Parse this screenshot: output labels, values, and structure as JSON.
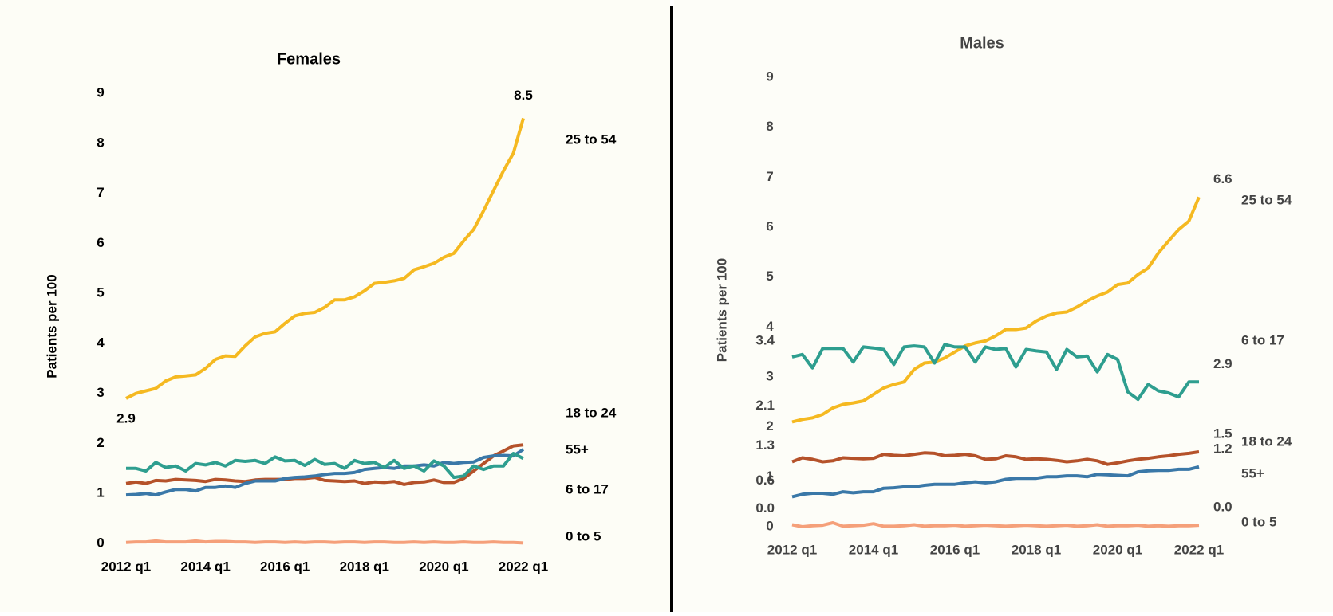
{
  "chart_data": [
    {
      "type": "line",
      "title": "Females",
      "y_label": "Patients per 100",
      "categories": [
        "2012 q1",
        null,
        null,
        null,
        null,
        null,
        null,
        null,
        "2014 q1",
        null,
        null,
        null,
        null,
        null,
        null,
        null,
        "2016 q1",
        null,
        null,
        null,
        null,
        null,
        null,
        null,
        "2018 q1",
        null,
        null,
        null,
        null,
        null,
        null,
        null,
        "2020 q1",
        null,
        null,
        null,
        null,
        null,
        null,
        null,
        "2022 q1"
      ],
      "ylim": [
        0,
        9
      ],
      "yticks": [
        0,
        1,
        2,
        3,
        4,
        5,
        6,
        7,
        8,
        9
      ],
      "series": [
        {
          "name": "25 to 54",
          "color": "#f5b921",
          "values": [
            2.9,
            3.0,
            3.05,
            3.1,
            3.25,
            3.33,
            3.35,
            3.37,
            3.5,
            3.68,
            3.75,
            3.74,
            3.95,
            4.13,
            4.2,
            4.23,
            4.4,
            4.55,
            4.6,
            4.62,
            4.72,
            4.87,
            4.87,
            4.93,
            5.05,
            5.2,
            5.22,
            5.25,
            5.3,
            5.47,
            5.53,
            5.6,
            5.72,
            5.8,
            6.05,
            6.28,
            6.65,
            7.05,
            7.45,
            7.8,
            8.5
          ],
          "value_labels": [
            "2.9",
            null,
            null,
            null,
            null,
            null,
            null,
            null,
            null,
            null,
            null,
            null,
            null,
            null,
            null,
            null,
            null,
            null,
            null,
            null,
            null,
            null,
            null,
            null,
            null,
            null,
            null,
            null,
            null,
            null,
            null,
            null,
            null,
            null,
            null,
            null,
            null,
            null,
            null,
            null,
            "8.5"
          ]
        },
        {
          "name": "18 to 24",
          "color": "#b5522a",
          "values": [
            1.2,
            1.23,
            1.2,
            1.26,
            1.25,
            1.28,
            1.27,
            1.26,
            1.24,
            1.28,
            1.27,
            1.25,
            1.24,
            1.27,
            1.28,
            1.28,
            1.28,
            1.3,
            1.3,
            1.32,
            1.26,
            1.25,
            1.24,
            1.25,
            1.2,
            1.23,
            1.22,
            1.24,
            1.18,
            1.22,
            1.23,
            1.27,
            1.22,
            1.22,
            1.3,
            1.45,
            1.6,
            1.75,
            1.85,
            1.95,
            1.97
          ]
        },
        {
          "name": "55+",
          "color": "#3a78a8",
          "values": [
            0.97,
            0.98,
            1.0,
            0.97,
            1.03,
            1.08,
            1.08,
            1.05,
            1.12,
            1.12,
            1.15,
            1.12,
            1.2,
            1.25,
            1.25,
            1.25,
            1.3,
            1.32,
            1.33,
            1.35,
            1.38,
            1.4,
            1.4,
            1.42,
            1.48,
            1.5,
            1.52,
            1.5,
            1.55,
            1.55,
            1.57,
            1.55,
            1.62,
            1.6,
            1.62,
            1.63,
            1.72,
            1.75,
            1.76,
            1.75,
            1.88
          ]
        },
        {
          "name": "6 to 17",
          "color": "#2e9e8f",
          "values": [
            1.5,
            1.5,
            1.45,
            1.62,
            1.52,
            1.55,
            1.45,
            1.6,
            1.57,
            1.62,
            1.55,
            1.66,
            1.64,
            1.66,
            1.6,
            1.73,
            1.65,
            1.66,
            1.56,
            1.68,
            1.58,
            1.6,
            1.5,
            1.66,
            1.6,
            1.62,
            1.52,
            1.66,
            1.5,
            1.55,
            1.45,
            1.65,
            1.55,
            1.32,
            1.35,
            1.55,
            1.48,
            1.55,
            1.55,
            1.8,
            1.7
          ]
        },
        {
          "name": "0 to 5",
          "color": "#f5a07a",
          "values": [
            0.02,
            0.03,
            0.03,
            0.05,
            0.03,
            0.03,
            0.03,
            0.05,
            0.03,
            0.04,
            0.04,
            0.03,
            0.03,
            0.02,
            0.03,
            0.03,
            0.02,
            0.03,
            0.02,
            0.03,
            0.03,
            0.02,
            0.03,
            0.03,
            0.02,
            0.03,
            0.03,
            0.02,
            0.02,
            0.03,
            0.02,
            0.03,
            0.02,
            0.02,
            0.03,
            0.02,
            0.02,
            0.03,
            0.02,
            0.02,
            0.01
          ]
        }
      ]
    },
    {
      "type": "line",
      "title": "Males",
      "y_label": "Patients per 100",
      "categories": [
        "2012 q1",
        null,
        null,
        null,
        null,
        null,
        null,
        null,
        "2014 q1",
        null,
        null,
        null,
        null,
        null,
        null,
        null,
        "2016 q1",
        null,
        null,
        null,
        null,
        null,
        null,
        null,
        "2018 q1",
        null,
        null,
        null,
        null,
        null,
        null,
        null,
        "2020 q1",
        null,
        null,
        null,
        null,
        null,
        null,
        null,
        "2022 q1"
      ],
      "ylim": [
        0,
        9
      ],
      "yticks": [
        0,
        1,
        2,
        3,
        4,
        5,
        6,
        7,
        8,
        9
      ],
      "series": [
        {
          "name": "25 to 54",
          "color": "#f5b921",
          "values": [
            2.1,
            2.15,
            2.18,
            2.25,
            2.38,
            2.45,
            2.48,
            2.52,
            2.65,
            2.78,
            2.85,
            2.9,
            3.15,
            3.28,
            3.3,
            3.38,
            3.5,
            3.62,
            3.68,
            3.72,
            3.82,
            3.95,
            3.95,
            3.98,
            4.12,
            4.22,
            4.28,
            4.3,
            4.4,
            4.52,
            4.62,
            4.7,
            4.85,
            4.88,
            5.05,
            5.18,
            5.48,
            5.72,
            5.95,
            6.12,
            6.6
          ],
          "value_labels": [
            "2.1",
            null,
            null,
            null,
            null,
            null,
            null,
            null,
            null,
            null,
            null,
            null,
            null,
            null,
            null,
            null,
            null,
            null,
            null,
            null,
            null,
            null,
            null,
            null,
            null,
            null,
            null,
            null,
            null,
            null,
            null,
            null,
            null,
            null,
            null,
            null,
            null,
            null,
            null,
            null,
            "6.6"
          ]
        },
        {
          "name": "6 to 17",
          "color": "#2e9e8f",
          "values": [
            3.4,
            3.45,
            3.18,
            3.57,
            3.57,
            3.57,
            3.3,
            3.6,
            3.58,
            3.55,
            3.25,
            3.6,
            3.62,
            3.6,
            3.28,
            3.65,
            3.6,
            3.6,
            3.3,
            3.6,
            3.55,
            3.57,
            3.2,
            3.55,
            3.52,
            3.5,
            3.15,
            3.55,
            3.4,
            3.42,
            3.1,
            3.45,
            3.35,
            2.7,
            2.55,
            2.85,
            2.72,
            2.68,
            2.6,
            2.9,
            2.9
          ],
          "value_labels": [
            "3.4",
            null,
            null,
            null,
            null,
            null,
            null,
            null,
            null,
            null,
            null,
            null,
            null,
            null,
            null,
            null,
            null,
            null,
            null,
            null,
            null,
            null,
            null,
            null,
            null,
            null,
            null,
            null,
            null,
            null,
            null,
            null,
            null,
            null,
            null,
            null,
            null,
            null,
            null,
            null,
            "2.9"
          ]
        },
        {
          "name": "18 to 24",
          "color": "#b5522a",
          "values": [
            1.3,
            1.38,
            1.35,
            1.3,
            1.32,
            1.38,
            1.37,
            1.36,
            1.37,
            1.45,
            1.43,
            1.42,
            1.45,
            1.48,
            1.47,
            1.42,
            1.43,
            1.45,
            1.42,
            1.35,
            1.36,
            1.42,
            1.4,
            1.35,
            1.36,
            1.35,
            1.33,
            1.3,
            1.32,
            1.35,
            1.32,
            1.25,
            1.28,
            1.32,
            1.35,
            1.37,
            1.4,
            1.42,
            1.45,
            1.47,
            1.5
          ],
          "value_labels": [
            "1.3",
            null,
            null,
            null,
            null,
            null,
            null,
            null,
            null,
            null,
            null,
            null,
            null,
            null,
            null,
            null,
            null,
            null,
            null,
            null,
            null,
            null,
            null,
            null,
            null,
            null,
            null,
            null,
            null,
            null,
            null,
            null,
            null,
            null,
            null,
            null,
            null,
            null,
            null,
            null,
            "1.5"
          ]
        },
        {
          "name": "55+",
          "color": "#3a78a8",
          "values": [
            0.6,
            0.65,
            0.67,
            0.67,
            0.65,
            0.7,
            0.68,
            0.7,
            0.7,
            0.77,
            0.78,
            0.8,
            0.8,
            0.83,
            0.85,
            0.85,
            0.85,
            0.88,
            0.9,
            0.88,
            0.9,
            0.95,
            0.97,
            0.97,
            0.97,
            1.0,
            1.0,
            1.02,
            1.02,
            1.0,
            1.05,
            1.04,
            1.03,
            1.02,
            1.1,
            1.12,
            1.13,
            1.13,
            1.15,
            1.15,
            1.2
          ],
          "value_labels": [
            "0.6",
            null,
            null,
            null,
            null,
            null,
            null,
            null,
            null,
            null,
            null,
            null,
            null,
            null,
            null,
            null,
            null,
            null,
            null,
            null,
            null,
            null,
            null,
            null,
            null,
            null,
            null,
            null,
            null,
            null,
            null,
            null,
            null,
            null,
            null,
            null,
            null,
            null,
            null,
            null,
            "1.2"
          ]
        },
        {
          "name": "0 to 5",
          "color": "#f5a07a",
          "values": [
            0.04,
            0.0,
            0.02,
            0.03,
            0.08,
            0.01,
            0.02,
            0.03,
            0.06,
            0.01,
            0.01,
            0.02,
            0.04,
            0.01,
            0.02,
            0.02,
            0.03,
            0.01,
            0.02,
            0.03,
            0.02,
            0.01,
            0.02,
            0.03,
            0.02,
            0.01,
            0.02,
            0.03,
            0.01,
            0.02,
            0.04,
            0.01,
            0.02,
            0.02,
            0.03,
            0.01,
            0.02,
            0.01,
            0.02,
            0.02,
            0.03
          ],
          "value_labels": [
            "0.0",
            null,
            null,
            null,
            null,
            null,
            null,
            null,
            null,
            null,
            null,
            null,
            null,
            null,
            null,
            null,
            null,
            null,
            null,
            null,
            null,
            null,
            null,
            null,
            null,
            null,
            null,
            null,
            null,
            null,
            null,
            null,
            null,
            null,
            null,
            null,
            null,
            null,
            null,
            null,
            "0.0"
          ]
        }
      ]
    }
  ]
}
